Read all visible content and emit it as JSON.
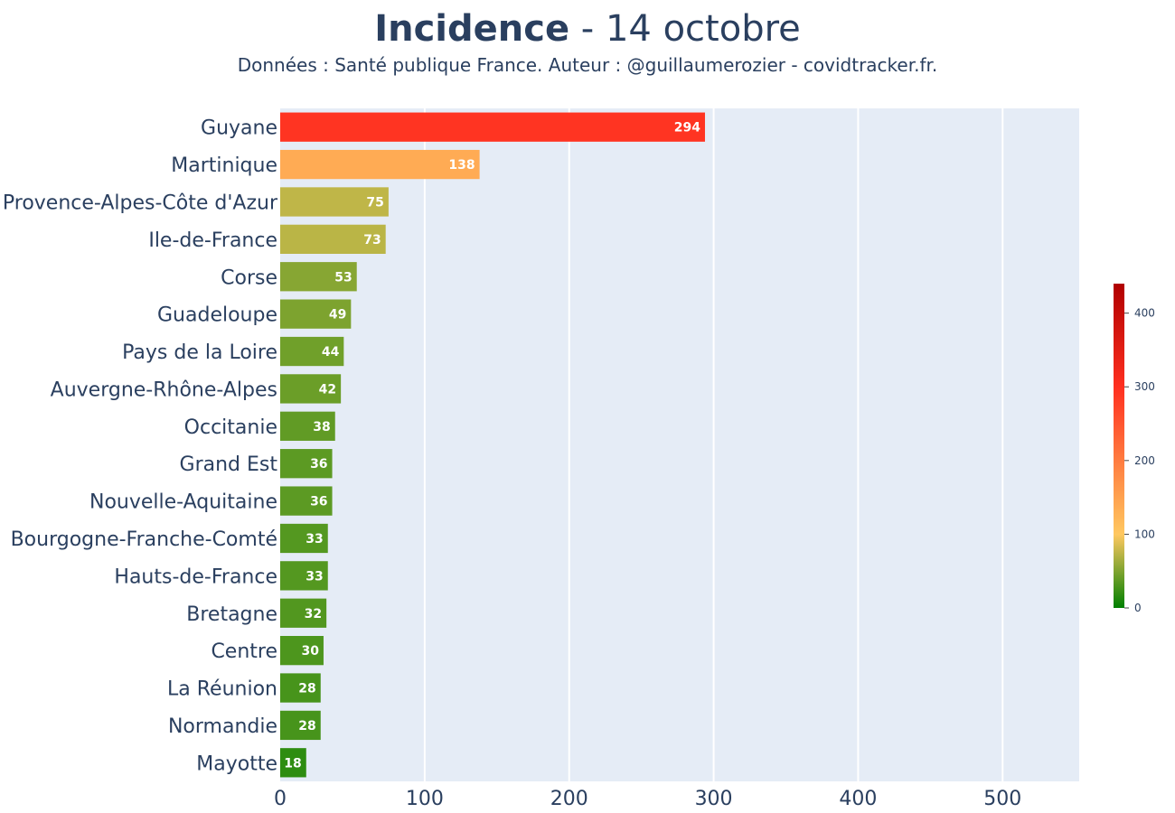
{
  "title_bold": "Incidence",
  "title_rest": " - 14 octobre",
  "subtitle": "Données : Santé publique France. Auteur : @guillaumerozier - covidtracker.fr.",
  "chart_data": {
    "type": "bar",
    "orientation": "horizontal",
    "categories": [
      "Guyane",
      "Martinique",
      "Provence-Alpes-Côte d'Azur",
      "Ile-de-France",
      "Corse",
      "Guadeloupe",
      "Pays de la Loire",
      "Auvergne-Rhône-Alpes",
      "Occitanie",
      "Grand Est",
      "Nouvelle-Aquitaine",
      "Bourgogne-Franche-Comté",
      "Hauts-de-France",
      "Bretagne",
      "Centre",
      "La Réunion",
      "Normandie",
      "Mayotte"
    ],
    "values": [
      294,
      138,
      75,
      73,
      53,
      49,
      44,
      42,
      38,
      36,
      36,
      33,
      33,
      32,
      30,
      28,
      28,
      18
    ],
    "xlim": [
      0,
      553
    ],
    "xticks": [
      0,
      100,
      200,
      300,
      400,
      500
    ],
    "grid": true,
    "colorscale": {
      "range": [
        0,
        440
      ],
      "ticks": [
        0,
        100,
        200,
        300,
        400
      ],
      "colors": [
        "#008000",
        "#ffc860",
        "#ff3020",
        "#b00000"
      ],
      "placement": "right"
    }
  }
}
